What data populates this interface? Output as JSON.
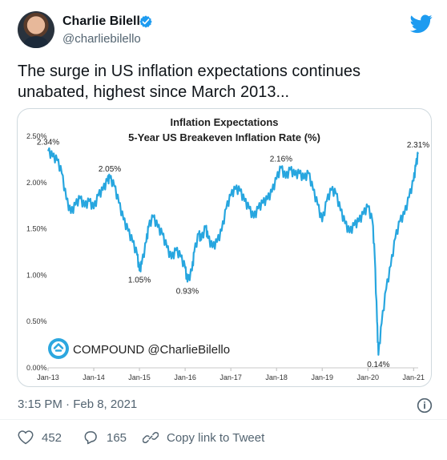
{
  "author": {
    "name": "Charlie Bilello",
    "handle": "@charliebilello"
  },
  "tweet": {
    "text": "The surge in US inflation expectations continues unabated, highest since March 2013...",
    "timestamp": "3:15 PM · Feb 8, 2021",
    "likes": "452",
    "replies": "165",
    "copy_label": "Copy link to Tweet"
  },
  "icons": {
    "logo": "twitter-bird-icon",
    "verified": "verified-badge-icon",
    "info": "info-icon",
    "like": "heart-icon",
    "reply": "reply-icon",
    "copy": "link-icon"
  },
  "colors": {
    "twitter_blue": "#1d9bf0",
    "line": "#27a6df",
    "text": "#0f1419",
    "muted": "#536471"
  },
  "chart": {
    "title_line1": "Inflation Expectations",
    "title_line2": "5-Year US Breakeven Inflation Rate (%)",
    "watermark": "COMPOUND @CharlieBilello"
  },
  "chart_data": {
    "type": "line",
    "title": "Inflation Expectations",
    "subtitle": "5-Year US Breakeven Inflation Rate (%)",
    "ylim": [
      0,
      2.5
    ],
    "y_ticks": [
      "0.00%",
      "0.50%",
      "1.00%",
      "1.50%",
      "2.00%",
      "2.50%"
    ],
    "x_ticks": [
      "Jan-13",
      "Jan-14",
      "Jan-15",
      "Jan-16",
      "Jan-17",
      "Jan-18",
      "Jan-19",
      "Jan-20",
      "Jan-21"
    ],
    "series": [
      {
        "points": [
          [
            2013.0,
            2.34
          ],
          [
            2013.1,
            2.28
          ],
          [
            2013.2,
            2.24
          ],
          [
            2013.3,
            2.1
          ],
          [
            2013.4,
            1.82
          ],
          [
            2013.5,
            1.67
          ],
          [
            2013.6,
            1.76
          ],
          [
            2013.7,
            1.83
          ],
          [
            2013.8,
            1.74
          ],
          [
            2013.9,
            1.8
          ],
          [
            2014.0,
            1.72
          ],
          [
            2014.1,
            1.86
          ],
          [
            2014.2,
            1.92
          ],
          [
            2014.3,
            2.02
          ],
          [
            2014.35,
            2.05
          ],
          [
            2014.45,
            1.96
          ],
          [
            2014.55,
            1.78
          ],
          [
            2014.65,
            1.6
          ],
          [
            2014.75,
            1.48
          ],
          [
            2014.85,
            1.36
          ],
          [
            2014.95,
            1.22
          ],
          [
            2015.0,
            1.05
          ],
          [
            2015.05,
            1.12
          ],
          [
            2015.15,
            1.36
          ],
          [
            2015.2,
            1.52
          ],
          [
            2015.3,
            1.63
          ],
          [
            2015.4,
            1.52
          ],
          [
            2015.5,
            1.44
          ],
          [
            2015.6,
            1.3
          ],
          [
            2015.7,
            1.18
          ],
          [
            2015.8,
            1.27
          ],
          [
            2015.9,
            1.2
          ],
          [
            2016.0,
            1.08
          ],
          [
            2016.05,
            0.93
          ],
          [
            2016.15,
            1.05
          ],
          [
            2016.2,
            1.25
          ],
          [
            2016.3,
            1.45
          ],
          [
            2016.35,
            1.38
          ],
          [
            2016.45,
            1.52
          ],
          [
            2016.5,
            1.4
          ],
          [
            2016.6,
            1.3
          ],
          [
            2016.7,
            1.36
          ],
          [
            2016.8,
            1.48
          ],
          [
            2016.9,
            1.72
          ],
          [
            2017.0,
            1.86
          ],
          [
            2017.1,
            1.93
          ],
          [
            2017.2,
            1.91
          ],
          [
            2017.3,
            1.8
          ],
          [
            2017.4,
            1.72
          ],
          [
            2017.5,
            1.62
          ],
          [
            2017.6,
            1.72
          ],
          [
            2017.7,
            1.78
          ],
          [
            2017.8,
            1.82
          ],
          [
            2017.9,
            1.9
          ],
          [
            2018.0,
            2.04
          ],
          [
            2018.1,
            2.16
          ],
          [
            2018.2,
            2.05
          ],
          [
            2018.3,
            2.14
          ],
          [
            2018.4,
            2.08
          ],
          [
            2018.5,
            2.1
          ],
          [
            2018.6,
            2.04
          ],
          [
            2018.7,
            2.1
          ],
          [
            2018.8,
            1.92
          ],
          [
            2018.9,
            1.76
          ],
          [
            2019.0,
            1.58
          ],
          [
            2019.1,
            1.8
          ],
          [
            2019.2,
            1.92
          ],
          [
            2019.3,
            1.88
          ],
          [
            2019.4,
            1.7
          ],
          [
            2019.5,
            1.56
          ],
          [
            2019.6,
            1.46
          ],
          [
            2019.7,
            1.54
          ],
          [
            2019.8,
            1.58
          ],
          [
            2019.9,
            1.66
          ],
          [
            2020.0,
            1.74
          ],
          [
            2020.1,
            1.58
          ],
          [
            2020.15,
            1.2
          ],
          [
            2020.2,
            0.5
          ],
          [
            2020.23,
            0.14
          ],
          [
            2020.3,
            0.48
          ],
          [
            2020.4,
            0.85
          ],
          [
            2020.5,
            1.1
          ],
          [
            2020.6,
            1.4
          ],
          [
            2020.7,
            1.58
          ],
          [
            2020.8,
            1.66
          ],
          [
            2020.9,
            1.84
          ],
          [
            2021.0,
            2.02
          ],
          [
            2021.05,
            2.18
          ],
          [
            2021.1,
            2.31
          ]
        ]
      }
    ],
    "annotations": [
      {
        "x": 2013.0,
        "y": 2.34,
        "label": "2.34%"
      },
      {
        "x": 2014.35,
        "y": 2.05,
        "label": "2.05%"
      },
      {
        "x": 2015.0,
        "y": 1.05,
        "label": "1.05%"
      },
      {
        "x": 2016.05,
        "y": 0.93,
        "label": "0.93%"
      },
      {
        "x": 2018.1,
        "y": 2.16,
        "label": "2.16%"
      },
      {
        "x": 2020.23,
        "y": 0.14,
        "label": "0.14%"
      },
      {
        "x": 2021.1,
        "y": 2.31,
        "label": "2.31%"
      }
    ]
  }
}
